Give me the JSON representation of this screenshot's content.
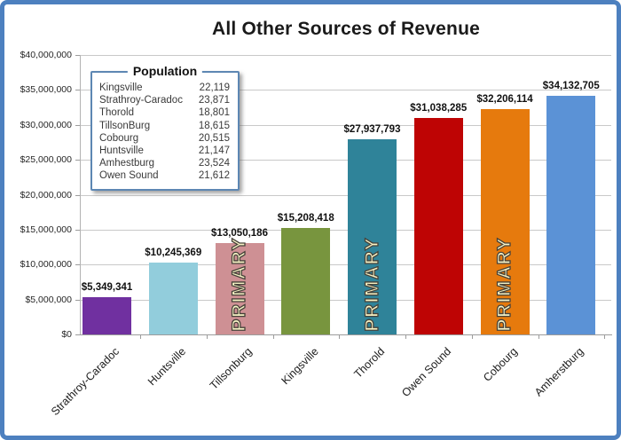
{
  "frame": {
    "border_color": "#4d80bf",
    "background": "#ffffff"
  },
  "chart_data": {
    "type": "bar",
    "title": "All Other Sources of Revenue",
    "categories": [
      "Strathroy-Caradoc",
      "Huntsville",
      "Tillsonburg",
      "Kingsville",
      "Thorold",
      "Owen Sound",
      "Cobourg",
      "Amherstburg"
    ],
    "values": [
      5349341,
      10245369,
      13050186,
      15208418,
      27937793,
      31038285,
      32206114,
      34132705
    ],
    "data_labels": [
      "$5,349,341",
      "$10,245,369",
      "$13,050,186",
      "$15,208,418",
      "$27,937,793",
      "$31,038,285",
      "$32,206,114",
      "$34,132,705"
    ],
    "bar_colors": [
      "#7030A0",
      "#92CDDC",
      "#CE9094",
      "#78953E",
      "#2F8399",
      "#BE0404",
      "#E67A0D",
      "#5B92D6"
    ],
    "primary_flags": [
      false,
      false,
      true,
      false,
      true,
      false,
      true,
      false
    ],
    "primary_overlay_text": "PRIMARY",
    "primary_text_fill": "#F8F4C6",
    "primary_text_outline": "#46423A",
    "xlabel": "",
    "ylabel": "",
    "ylim": [
      0,
      40000000
    ],
    "y_tick_labels": [
      "$40,000,000",
      "$35,000,000",
      "$30,000,000",
      "$25,000,000",
      "$20,000,000",
      "$15,000,000",
      "$10,000,000",
      "$5,000,000",
      "$0"
    ],
    "grid": "horizontal",
    "legend_position": "upper-left-inside"
  },
  "legend": {
    "title": "Population",
    "rows": [
      {
        "name": "Kingsville",
        "value": "22,119"
      },
      {
        "name": "Strathroy-Caradoc",
        "value": "23,871"
      },
      {
        "name": "Thorold",
        "value": "18,801"
      },
      {
        "name": "TillsonBurg",
        "value": "18,615"
      },
      {
        "name": "Cobourg",
        "value": "20,515"
      },
      {
        "name": "Huntsville",
        "value": "21,147"
      },
      {
        "name": "Amhestburg",
        "value": "23,524"
      },
      {
        "name": "Owen Sound",
        "value": "21,612"
      }
    ]
  },
  "colors": {
    "gridline": "#C9C9C9",
    "axis_line": "#9C9C9C",
    "title_text": "#1A1A1A",
    "label_text": "#111111"
  }
}
